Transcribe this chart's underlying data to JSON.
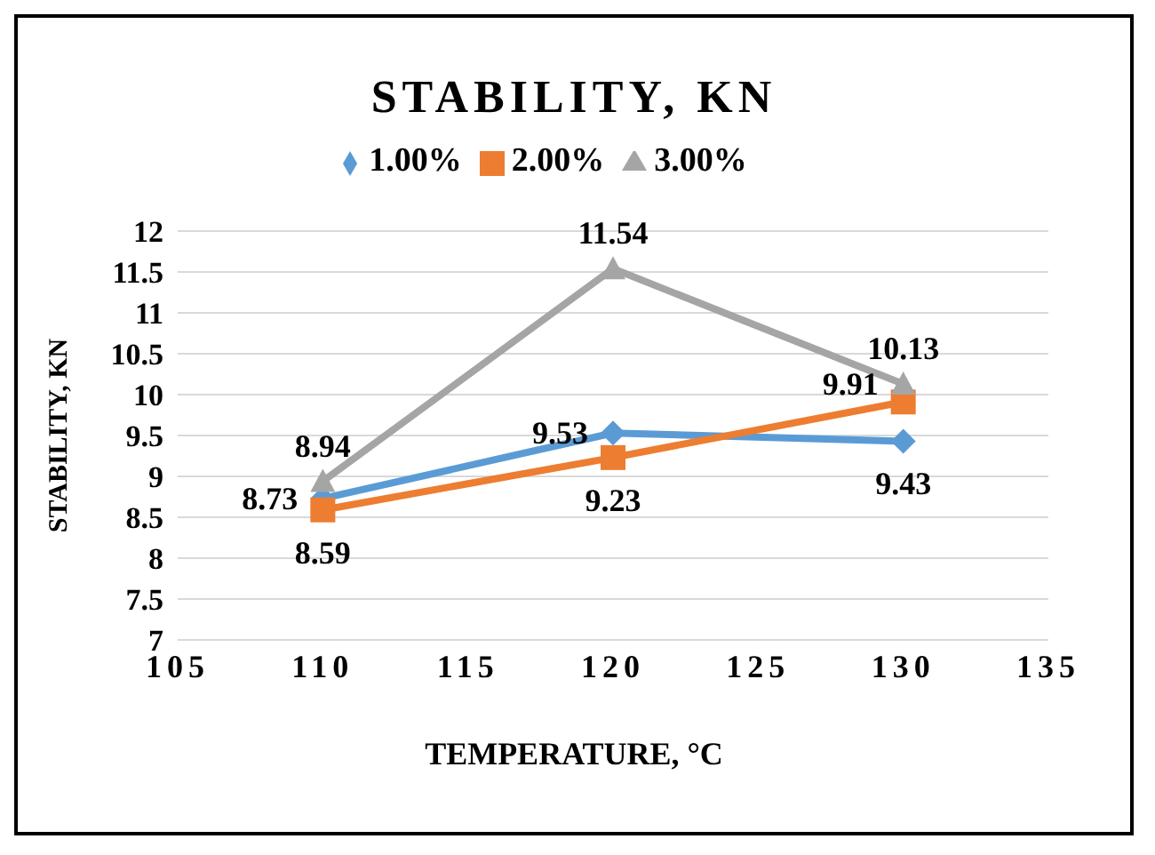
{
  "chart_data": {
    "type": "line",
    "title": "STABILITY, KN",
    "xlabel": "TEMPERATURE, °C",
    "ylabel": "STABILITY, KN",
    "x": [
      110,
      120,
      130
    ],
    "series": [
      {
        "name": "1.00%",
        "color": "#5b9bd5",
        "marker": "diamond",
        "values": [
          8.73,
          9.53,
          9.43
        ]
      },
      {
        "name": "2.00%",
        "color": "#ed7d31",
        "marker": "square",
        "values": [
          8.59,
          9.23,
          9.91
        ]
      },
      {
        "name": "3.00%",
        "color": "#a5a5a5",
        "marker": "triangle",
        "values": [
          8.94,
          11.54,
          10.13
        ]
      }
    ],
    "xlim": [
      105,
      135
    ],
    "xticks": [
      105,
      110,
      115,
      120,
      125,
      130,
      135
    ],
    "ylim": [
      7,
      12
    ],
    "yticks": [
      7,
      7.5,
      8,
      8.5,
      9,
      9.5,
      10,
      10.5,
      11,
      11.5,
      12
    ],
    "grid": "y",
    "legend": "top",
    "data_labels": true,
    "line_style": "solid"
  }
}
